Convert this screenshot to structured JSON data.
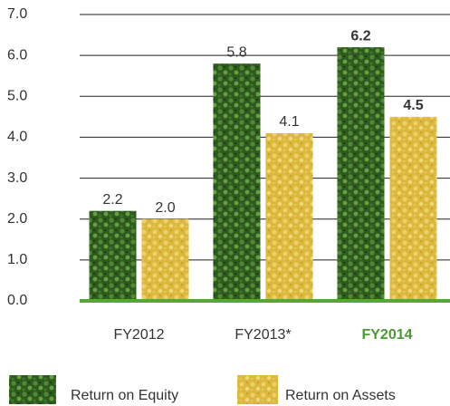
{
  "chart_data": {
    "type": "bar",
    "categories": [
      "FY2012",
      "FY2013*",
      "FY2014"
    ],
    "highlight_index": 2,
    "highlight_color": "#4a9a32",
    "baseline_color": "#5aa53a",
    "series": [
      {
        "name": "Return on Equity",
        "color": "#3b6a27",
        "values": [
          2.2,
          5.8,
          6.2
        ],
        "value_labels": [
          "2.2",
          "5.8",
          "6.2"
        ]
      },
      {
        "name": "Return on Assets",
        "color": "#e2c046",
        "values": [
          2.0,
          4.1,
          4.5
        ],
        "value_labels": [
          "2.0",
          "4.1",
          "4.5"
        ]
      }
    ],
    "ylim": [
      0,
      7
    ],
    "yticks": [
      {
        "value": 0,
        "label": "0.0"
      },
      {
        "value": 1,
        "label": "1.0"
      },
      {
        "value": 2,
        "label": "2.0"
      },
      {
        "value": 3,
        "label": "3.0"
      },
      {
        "value": 4,
        "label": "4.0"
      },
      {
        "value": 5,
        "label": "5.0"
      },
      {
        "value": 6,
        "label": "6.0"
      },
      {
        "value": 7,
        "label": "7.0"
      }
    ],
    "grid": true
  }
}
